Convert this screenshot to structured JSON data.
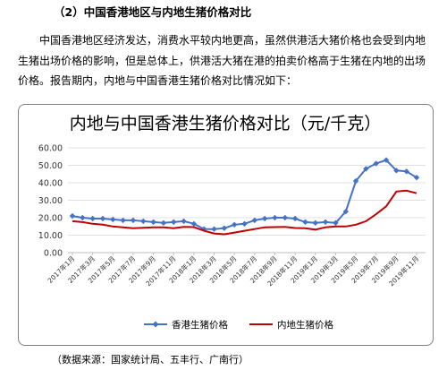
{
  "section_heading": "（2）中国香港地区与内地生猪价格对比",
  "paragraph": "中国香港地区经济发达，消费水平较内地更高，虽然供港活大猪价格也会受到内地生猪出场价格的影响，但是总体上，供港活大猪在港的拍卖价格高于生猪在内地的出场价格。报告期内，内地与中国香港生猪价格对比情况如下：",
  "source_note": "（数据来源：国家统计局、五丰行、广南行）",
  "chart_data": {
    "type": "line",
    "title": "内地与中国香港生猪价格对比（元/千克）",
    "ylim": [
      0,
      60
    ],
    "yticks": [
      "0.00",
      "10.00",
      "20.00",
      "30.00",
      "40.00",
      "50.00",
      "60.00"
    ],
    "grid": true,
    "legend_position": "bottom",
    "x_tick_labels": [
      "2017年1月",
      "2017年3月",
      "2017年5月",
      "2017年7月",
      "2017年9月",
      "2017年11月",
      "2018年1月",
      "2018年3月",
      "2018年5月",
      "2018年7月",
      "2018年9月",
      "2018年11月",
      "2019年1月",
      "2019年3月",
      "2019年5月",
      "2019年7月",
      "2019年9月",
      "2019年11月"
    ],
    "series": [
      {
        "name": "香港生猪价格",
        "color": "#4472c4",
        "marker": "diamond",
        "values": [
          21,
          20,
          19.5,
          19.5,
          19,
          18.5,
          18.5,
          18,
          17.5,
          17,
          17.5,
          18,
          16.5,
          13.5,
          13.5,
          14,
          16,
          16.5,
          18.5,
          19.5,
          20,
          20,
          19.5,
          17.5,
          17,
          17.5,
          17,
          23.5,
          41,
          48,
          51,
          53,
          47,
          46.5,
          43
        ]
      },
      {
        "name": "内地生猪价格",
        "color": "#c00000",
        "marker": "none",
        "values": [
          18,
          17.5,
          16.5,
          16,
          15,
          14.5,
          14,
          14.2,
          14.5,
          14.5,
          14,
          14.7,
          14.6,
          12.5,
          11,
          10.5,
          11.5,
          12.5,
          13.5,
          14.5,
          14.6,
          14.7,
          14.1,
          14,
          13.2,
          14.5,
          15,
          15,
          16,
          18,
          22,
          26.5,
          35,
          35.5,
          34
        ]
      }
    ]
  }
}
